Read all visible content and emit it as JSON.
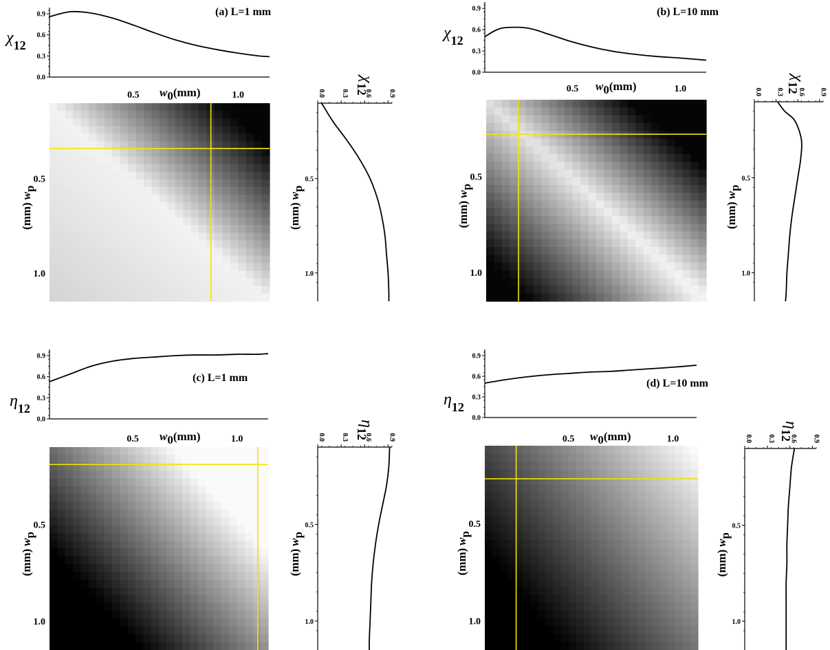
{
  "figure": {
    "panels": [
      {
        "id": "a",
        "title": "(a) L=1 mm",
        "quantity_symbol": "χ",
        "quantity_sub": "12",
        "x_axis_label_var": "w",
        "x_axis_label_sub": "0",
        "x_axis_label_unit": "(mm)",
        "y_axis_label_var": "w",
        "y_axis_label_sub": "p",
        "y_axis_label_unit": "(mm)",
        "heat_tick_labels": [
          "0.5",
          "1.0"
        ],
        "profile_tick_labels": [
          "0.0",
          "0.3",
          "0.6",
          "0.9"
        ],
        "profile_length_tick_labels": [
          "0.5",
          "1.0"
        ]
      },
      {
        "id": "b",
        "title": "(b) L=10 mm",
        "quantity_symbol": "χ",
        "quantity_sub": "12",
        "x_axis_label_var": "w",
        "x_axis_label_sub": "0",
        "x_axis_label_unit": "(mm)",
        "y_axis_label_var": "w",
        "y_axis_label_sub": "p",
        "y_axis_label_unit": "(mm)",
        "heat_tick_labels": [
          "0.5",
          "1.0"
        ],
        "profile_tick_labels": [
          "0.0",
          "0.3",
          "0.6",
          "0.9"
        ],
        "profile_length_tick_labels": [
          "0.5",
          "1.0"
        ]
      },
      {
        "id": "c",
        "title": "(c) L=1 mm",
        "quantity_symbol": "η",
        "quantity_sub": "12",
        "x_axis_label_var": "w",
        "x_axis_label_sub": "0",
        "x_axis_label_unit": "(mm)",
        "y_axis_label_var": "w",
        "y_axis_label_sub": "p",
        "y_axis_label_unit": "(mm)",
        "heat_tick_labels": [
          "0.5",
          "1.0"
        ],
        "profile_tick_labels": [
          "0.0",
          "0.3",
          "0.6",
          "0.9"
        ],
        "profile_length_tick_labels": [
          "0.5",
          "1.0"
        ]
      },
      {
        "id": "d",
        "title": "(d) L=10 mm",
        "quantity_symbol": "η",
        "quantity_sub": "12",
        "x_axis_label_var": "w",
        "x_axis_label_sub": "0",
        "x_axis_label_unit": "(mm)",
        "y_axis_label_var": "w",
        "y_axis_label_sub": "p",
        "y_axis_label_unit": "(mm)",
        "heat_tick_labels": [
          "0.5",
          "1.0"
        ],
        "profile_tick_labels": [
          "0.0",
          "0.3",
          "0.6",
          "0.9"
        ],
        "profile_length_tick_labels": [
          "0.5",
          "1.0"
        ]
      }
    ]
  },
  "chart_data": [
    {
      "panel": "a",
      "type": "line",
      "title": "(a) L=1 mm",
      "xlabel": "w0 (mm)",
      "ylabel": "χ12",
      "xlim": [
        0.1,
        1.15
      ],
      "ylim": [
        0.0,
        0.95
      ],
      "yticks": [
        0.0,
        0.3,
        0.6,
        0.9
      ],
      "x": [
        0.1,
        0.2,
        0.3,
        0.4,
        0.5,
        0.6,
        0.7,
        0.8,
        0.9,
        1.0,
        1.1,
        1.15
      ],
      "y": [
        0.86,
        0.93,
        0.91,
        0.84,
        0.74,
        0.63,
        0.53,
        0.45,
        0.39,
        0.34,
        0.3,
        0.29
      ]
    },
    {
      "panel": "a",
      "type": "heatmap",
      "xlabel": "w0 (mm)",
      "ylabel": "wp (mm)",
      "xlim": [
        0.1,
        1.15
      ],
      "ylim": [
        0.1,
        1.15
      ],
      "marker_w0": 0.87,
      "marker_wp": 0.34,
      "colormap": "grayscale (white = high)"
    },
    {
      "panel": "a",
      "type": "line",
      "orientation": "vertical",
      "xlabel": "χ12",
      "ylabel": "wp (mm)",
      "xlim": [
        0.0,
        0.95
      ],
      "ylim": [
        0.1,
        1.15
      ],
      "wp": [
        0.1,
        0.2,
        0.3,
        0.4,
        0.5,
        0.6,
        0.7,
        0.8,
        0.9,
        1.0,
        1.1,
        1.15
      ],
      "value": [
        0.05,
        0.2,
        0.38,
        0.54,
        0.67,
        0.76,
        0.82,
        0.86,
        0.88,
        0.9,
        0.91,
        0.91
      ]
    },
    {
      "panel": "b",
      "type": "line",
      "title": "(b) L=10 mm",
      "xlabel": "w0 (mm)",
      "ylabel": "χ12",
      "xlim": [
        0.1,
        1.12
      ],
      "ylim": [
        0.0,
        0.95
      ],
      "yticks": [
        0.0,
        0.3,
        0.6,
        0.9
      ],
      "x": [
        0.1,
        0.15,
        0.2,
        0.3,
        0.4,
        0.5,
        0.6,
        0.7,
        0.8,
        0.9,
        1.0,
        1.12
      ],
      "y": [
        0.5,
        0.59,
        0.63,
        0.62,
        0.53,
        0.43,
        0.35,
        0.29,
        0.25,
        0.22,
        0.2,
        0.17
      ]
    },
    {
      "panel": "b",
      "type": "heatmap",
      "xlabel": "w0 (mm)",
      "ylabel": "wp (mm)",
      "xlim": [
        0.1,
        1.12
      ],
      "ylim": [
        0.1,
        1.15
      ],
      "marker_w0": 0.25,
      "marker_wp": 0.28,
      "colormap": "grayscale (white = high)"
    },
    {
      "panel": "b",
      "type": "line",
      "orientation": "vertical",
      "xlabel": "χ12",
      "ylabel": "wp (mm)",
      "xlim": [
        0.0,
        0.95
      ],
      "ylim": [
        0.1,
        1.15
      ],
      "wp": [
        0.1,
        0.15,
        0.2,
        0.3,
        0.4,
        0.5,
        0.6,
        0.7,
        0.8,
        0.9,
        1.0,
        1.1,
        1.15
      ],
      "value": [
        0.32,
        0.42,
        0.56,
        0.65,
        0.64,
        0.6,
        0.56,
        0.52,
        0.49,
        0.47,
        0.45,
        0.44,
        0.43
      ]
    },
    {
      "panel": "c",
      "type": "line",
      "title": "(c) L=1 mm",
      "xlabel": "w0 (mm)",
      "ylabel": "η12",
      "xlim": [
        0.1,
        1.15
      ],
      "ylim": [
        0.0,
        0.95
      ],
      "yticks": [
        0.0,
        0.3,
        0.6,
        0.9
      ],
      "x": [
        0.1,
        0.2,
        0.3,
        0.4,
        0.5,
        0.6,
        0.7,
        0.8,
        0.9,
        1.0,
        1.1,
        1.15
      ],
      "y": [
        0.53,
        0.64,
        0.75,
        0.82,
        0.86,
        0.88,
        0.9,
        0.91,
        0.91,
        0.92,
        0.92,
        0.93
      ]
    },
    {
      "panel": "c",
      "type": "heatmap",
      "xlabel": "w0 (mm)",
      "ylabel": "wp (mm)",
      "xlim": [
        0.1,
        1.15
      ],
      "ylim": [
        0.1,
        1.15
      ],
      "marker_w0": 1.1,
      "marker_wp": 0.19,
      "colormap": "grayscale (white = high)"
    },
    {
      "panel": "c",
      "type": "line",
      "orientation": "vertical",
      "xlabel": "η12",
      "ylabel": "wp (mm)",
      "xlim": [
        0.0,
        0.95
      ],
      "ylim": [
        0.1,
        1.15
      ],
      "wp": [
        0.1,
        0.2,
        0.3,
        0.4,
        0.5,
        0.6,
        0.7,
        0.8,
        0.9,
        1.0,
        1.1,
        1.15
      ],
      "value": [
        0.92,
        0.91,
        0.88,
        0.83,
        0.78,
        0.74,
        0.71,
        0.69,
        0.68,
        0.67,
        0.66,
        0.66
      ]
    },
    {
      "panel": "d",
      "type": "line",
      "title": "(d) L=10 mm",
      "xlabel": "w0 (mm)",
      "ylabel": "η12",
      "xlim": [
        0.1,
        1.12
      ],
      "ylim": [
        0.0,
        0.95
      ],
      "yticks": [
        0.0,
        0.3,
        0.6,
        0.9
      ],
      "x": [
        0.1,
        0.2,
        0.3,
        0.4,
        0.5,
        0.6,
        0.7,
        0.8,
        0.9,
        1.0,
        1.12
      ],
      "y": [
        0.5,
        0.55,
        0.59,
        0.62,
        0.64,
        0.66,
        0.67,
        0.69,
        0.71,
        0.73,
        0.76
      ]
    },
    {
      "panel": "d",
      "type": "heatmap",
      "xlabel": "w0 (mm)",
      "ylabel": "wp (mm)",
      "xlim": [
        0.1,
        1.12
      ],
      "ylim": [
        0.1,
        1.15
      ],
      "marker_w0": 0.25,
      "marker_wp": 0.27,
      "colormap": "grayscale (white = high)"
    },
    {
      "panel": "d",
      "type": "line",
      "orientation": "vertical",
      "xlabel": "η12",
      "ylabel": "wp (mm)",
      "xlim": [
        0.0,
        0.95
      ],
      "ylim": [
        0.1,
        1.15
      ],
      "wp": [
        0.1,
        0.2,
        0.3,
        0.4,
        0.5,
        0.6,
        0.7,
        0.8,
        0.9,
        1.0,
        1.1,
        1.15
      ],
      "value": [
        0.66,
        0.62,
        0.6,
        0.58,
        0.57,
        0.56,
        0.56,
        0.55,
        0.55,
        0.55,
        0.55,
        0.55
      ]
    }
  ]
}
